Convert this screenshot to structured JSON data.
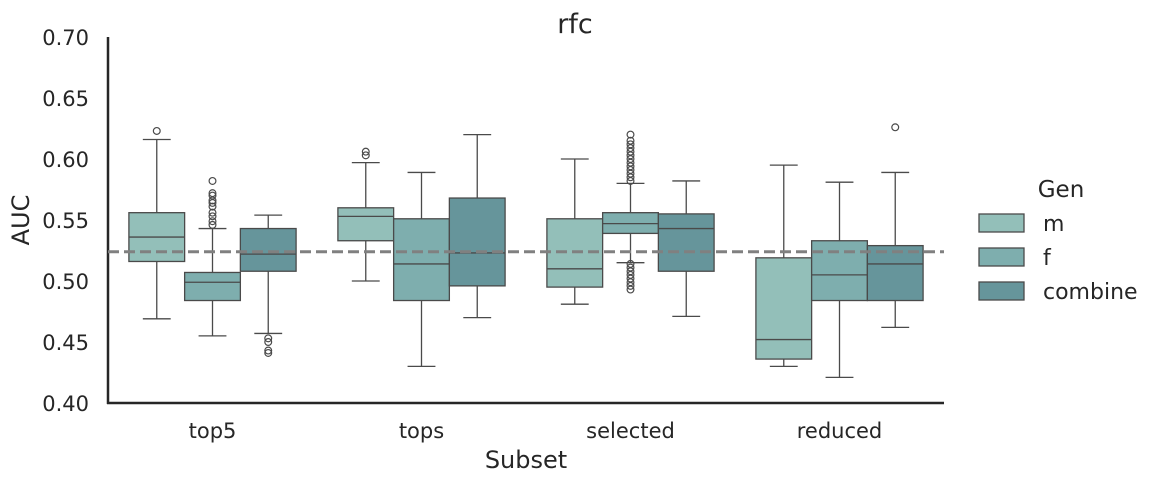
{
  "chart_data": {
    "type": "box",
    "title": "rfc",
    "xlabel": "Subset",
    "ylabel": "AUC",
    "ylim": [
      0.4,
      0.7
    ],
    "yticks": [
      "0.40",
      "0.45",
      "0.50",
      "0.55",
      "0.60",
      "0.65",
      "0.70"
    ],
    "categories": [
      "top5",
      "tops",
      "selected",
      "reduced"
    ],
    "reference_line": 0.524,
    "grid": false,
    "legend": {
      "title": "Gen",
      "position": "right"
    },
    "series": [
      {
        "name": "m",
        "color": "#93bfb9",
        "boxes": [
          {
            "q1": 0.516,
            "median": 0.536,
            "q3": 0.556,
            "whisker_low": 0.469,
            "whisker_high": 0.616,
            "outliers": [
              0.623
            ]
          },
          {
            "q1": 0.533,
            "median": 0.553,
            "q3": 0.56,
            "whisker_low": 0.5,
            "whisker_high": 0.597,
            "outliers": [
              0.603,
              0.606
            ]
          },
          {
            "q1": 0.495,
            "median": 0.51,
            "q3": 0.551,
            "whisker_low": 0.481,
            "whisker_high": 0.6,
            "outliers": []
          },
          {
            "q1": 0.436,
            "median": 0.452,
            "q3": 0.519,
            "whisker_low": 0.43,
            "whisker_high": 0.595,
            "outliers": []
          }
        ]
      },
      {
        "name": "f",
        "color": "#7eaeae",
        "boxes": [
          {
            "q1": 0.484,
            "median": 0.499,
            "q3": 0.507,
            "whisker_low": 0.455,
            "whisker_high": 0.543,
            "outliers": [
              0.546,
              0.549,
              0.553,
              0.556,
              0.561,
              0.564,
              0.566,
              0.57,
              0.572,
              0.582
            ]
          },
          {
            "q1": 0.484,
            "median": 0.514,
            "q3": 0.551,
            "whisker_low": 0.43,
            "whisker_high": 0.589,
            "outliers": []
          },
          {
            "q1": 0.539,
            "median": 0.547,
            "q3": 0.556,
            "whisker_low": 0.515,
            "whisker_high": 0.58,
            "outliers": [
              0.493,
              0.496,
              0.499,
              0.502,
              0.505,
              0.508,
              0.511,
              0.514,
              0.582,
              0.585,
              0.588,
              0.591,
              0.594,
              0.597,
              0.6,
              0.603,
              0.606,
              0.609,
              0.612,
              0.615,
              0.62
            ]
          },
          {
            "q1": 0.484,
            "median": 0.505,
            "q3": 0.533,
            "whisker_low": 0.421,
            "whisker_high": 0.581,
            "outliers": []
          }
        ]
      },
      {
        "name": "combine",
        "color": "#66959b",
        "boxes": [
          {
            "q1": 0.508,
            "median": 0.522,
            "q3": 0.543,
            "whisker_low": 0.457,
            "whisker_high": 0.554,
            "outliers": [
              0.441,
              0.443,
              0.45,
              0.453
            ]
          },
          {
            "q1": 0.496,
            "median": 0.523,
            "q3": 0.568,
            "whisker_low": 0.47,
            "whisker_high": 0.62,
            "outliers": []
          },
          {
            "q1": 0.508,
            "median": 0.543,
            "q3": 0.555,
            "whisker_low": 0.471,
            "whisker_high": 0.582,
            "outliers": []
          },
          {
            "q1": 0.484,
            "median": 0.514,
            "q3": 0.529,
            "whisker_low": 0.462,
            "whisker_high": 0.589,
            "outliers": [
              0.626
            ]
          }
        ]
      }
    ]
  }
}
